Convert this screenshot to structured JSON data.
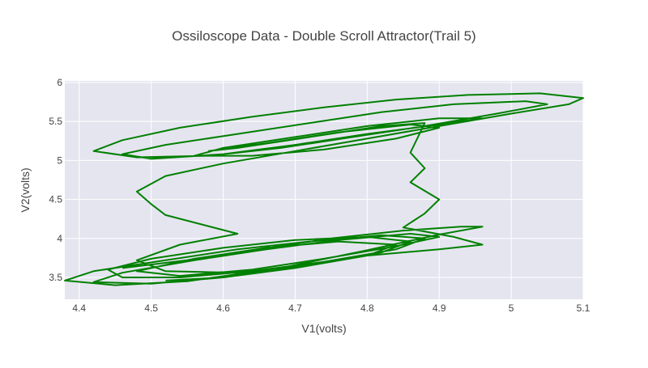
{
  "chart_data": {
    "type": "line",
    "title": "Ossiloscope Data - Double Scroll Attractor(Trail 5)",
    "xlabel": "V1(volts)",
    "ylabel": "V2(volts)",
    "xlim": [
      4.38,
      5.1
    ],
    "ylim": [
      3.22,
      6.02
    ],
    "x_ticks": [
      "4.4",
      "4.5",
      "4.6",
      "4.7",
      "4.8",
      "4.9",
      "5",
      "5.1"
    ],
    "x_tick_values": [
      4.4,
      4.5,
      4.6,
      4.7,
      4.8,
      4.9,
      5.0,
      5.1
    ],
    "y_ticks": [
      "3.5",
      "4",
      "4.5",
      "5",
      "5.5",
      "6"
    ],
    "y_tick_values": [
      3.5,
      4.0,
      4.5,
      5.0,
      5.5,
      6.0
    ],
    "grid": true,
    "line_color": "#008000",
    "plot_bg": "#e5e5f0",
    "series": [
      {
        "x": [
          4.46,
          4.55,
          4.65,
          4.75,
          4.85,
          4.93,
          4.96,
          4.9,
          4.8,
          4.68,
          4.55,
          4.45,
          4.38,
          4.42,
          4.52,
          4.62,
          4.72,
          4.82,
          4.88,
          4.84,
          4.74,
          4.64,
          4.54,
          4.46,
          4.44,
          4.5,
          4.6,
          4.7,
          4.8,
          4.86,
          4.82,
          4.72,
          4.62,
          4.52,
          4.48,
          4.54,
          4.62,
          4.52,
          4.5,
          4.48,
          4.52,
          4.6,
          4.7,
          4.8,
          4.9,
          5.0,
          5.08,
          5.1,
          5.04,
          4.94,
          4.84,
          4.74,
          4.64,
          4.54,
          4.46,
          4.42,
          4.48,
          4.58,
          4.68,
          4.78,
          4.88,
          4.98,
          5.05,
          5.02,
          4.92,
          4.82,
          4.72,
          4.62,
          4.52,
          4.46,
          4.5,
          4.6,
          4.7,
          4.8,
          4.9,
          4.96,
          4.9,
          4.8,
          4.7,
          4.6,
          4.56,
          4.64,
          4.74,
          4.84,
          4.9,
          4.86,
          4.76,
          4.66,
          4.58,
          4.62,
          4.72,
          4.82,
          4.88,
          4.86,
          4.88,
          4.86,
          4.9,
          4.88,
          4.85,
          4.92,
          4.96,
          4.9,
          4.8,
          4.7,
          4.6,
          4.5,
          4.42,
          4.46,
          4.56,
          4.66,
          4.76,
          4.86,
          4.9,
          4.84,
          4.74,
          4.64,
          4.54,
          4.48,
          4.56,
          4.66,
          4.76,
          4.84,
          4.8,
          4.7,
          4.6,
          4.52
        ],
        "y": [
          3.62,
          3.72,
          3.86,
          4.0,
          4.1,
          4.15,
          4.15,
          4.05,
          3.85,
          3.62,
          3.45,
          3.4,
          3.46,
          3.58,
          3.72,
          3.86,
          3.96,
          4.04,
          4.0,
          3.86,
          3.7,
          3.58,
          3.5,
          3.5,
          3.6,
          3.74,
          3.88,
          3.98,
          4.02,
          3.96,
          3.82,
          3.66,
          3.56,
          3.58,
          3.72,
          3.92,
          4.06,
          4.3,
          4.44,
          4.6,
          4.8,
          4.96,
          5.12,
          5.28,
          5.44,
          5.6,
          5.72,
          5.8,
          5.86,
          5.84,
          5.78,
          5.68,
          5.56,
          5.42,
          5.26,
          5.12,
          5.04,
          5.06,
          5.16,
          5.3,
          5.44,
          5.6,
          5.72,
          5.76,
          5.72,
          5.62,
          5.48,
          5.34,
          5.2,
          5.08,
          5.02,
          5.08,
          5.2,
          5.34,
          5.46,
          5.54,
          5.54,
          5.44,
          5.3,
          5.16,
          5.06,
          5.06,
          5.14,
          5.28,
          5.42,
          5.46,
          5.36,
          5.22,
          5.12,
          5.16,
          5.3,
          5.44,
          5.48,
          5.1,
          4.9,
          4.72,
          4.5,
          4.32,
          4.14,
          4.02,
          3.92,
          3.86,
          3.78,
          3.64,
          3.5,
          3.42,
          3.44,
          3.56,
          3.72,
          3.86,
          3.98,
          4.06,
          4.02,
          3.9,
          3.74,
          3.6,
          3.52,
          3.58,
          3.74,
          3.88,
          3.96,
          3.92,
          3.78,
          3.62,
          3.5,
          3.46
        ]
      }
    ]
  }
}
